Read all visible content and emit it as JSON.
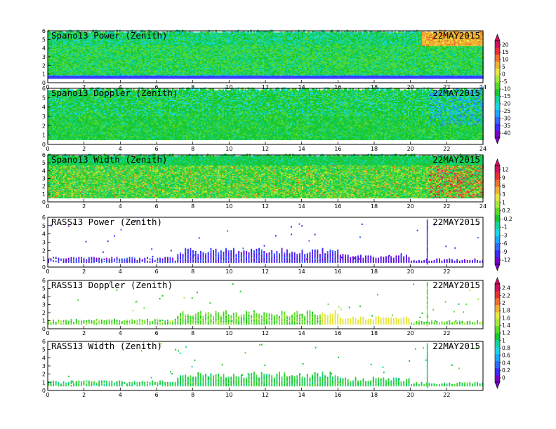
{
  "chart_data": {
    "type": "heatmap",
    "date_label": "22MAY2015",
    "x_range": [
      0,
      24
    ],
    "y_range": [
      0,
      6
    ],
    "y_ticks": [
      "0",
      "1",
      "2",
      "3",
      "4",
      "5",
      "6"
    ],
    "panels": [
      {
        "title": "Spano13 Power (Zenith)",
        "x_ticks": [
          "0",
          "2",
          "4",
          "6",
          "8",
          "10",
          "12",
          "14",
          "16",
          "18",
          "20",
          "22",
          "24"
        ],
        "colorbar": 0
      },
      {
        "title": "Spano13 Doppler (Zenith)",
        "x_ticks": [
          "0",
          "2",
          "4",
          "6",
          "8",
          "10",
          "12",
          "14",
          "16",
          "18",
          "20",
          "22",
          "24"
        ],
        "colorbar": -1
      },
      {
        "title": "Spano13 Width (Zenith)",
        "x_ticks": [
          "0",
          "2",
          "4",
          "6",
          "8",
          "10",
          "12",
          "14",
          "16",
          "18",
          "20",
          "22",
          "24"
        ],
        "colorbar": 1
      },
      {
        "title": "RASS13 Power (Zenith)",
        "x_ticks": [
          "0",
          "2",
          "4",
          "6",
          "8",
          "10",
          "12",
          "14",
          "16",
          "18",
          "20",
          "22"
        ],
        "colorbar": -1
      },
      {
        "title": "RASS13 Doppler (Zenith)",
        "x_ticks": [
          "0",
          "2",
          "4",
          "6",
          "8",
          "10",
          "12",
          "14",
          "16",
          "18",
          "20",
          "22"
        ],
        "colorbar": 2
      },
      {
        "title": "RASS13 Width (Zenith)",
        "x_ticks": [
          "0",
          "2",
          "4",
          "6",
          "8",
          "10",
          "12",
          "14",
          "16",
          "18",
          "20",
          "22"
        ],
        "colorbar": -1
      }
    ],
    "colorbars": [
      {
        "labels": [
          "20",
          "15",
          "10",
          "5",
          "0",
          "-5",
          "-10",
          "-15",
          "-20",
          "-25",
          "-30",
          "-35",
          "-40"
        ]
      },
      {
        "labels": [
          "12",
          "9",
          "6",
          "3",
          "1",
          "0.2",
          "-0.2",
          "-1",
          "-3",
          "-6",
          "-9",
          "-12"
        ]
      },
      {
        "labels": [
          "2.4",
          "2.2",
          "2",
          "1.8",
          "1.6",
          "1.4",
          "1.2",
          "1",
          "0.8",
          "0.6",
          "0.4",
          "0.2",
          "0"
        ]
      }
    ],
    "palette": [
      "#7a00c8",
      "#3d2cff",
      "#2f6bff",
      "#1aa8ff",
      "#19d6e6",
      "#14d4a0",
      "#18c832",
      "#5ada2a",
      "#a6e83a",
      "#e6e640",
      "#f0b030",
      "#f07030",
      "#e83030",
      "#d01060"
    ]
  }
}
